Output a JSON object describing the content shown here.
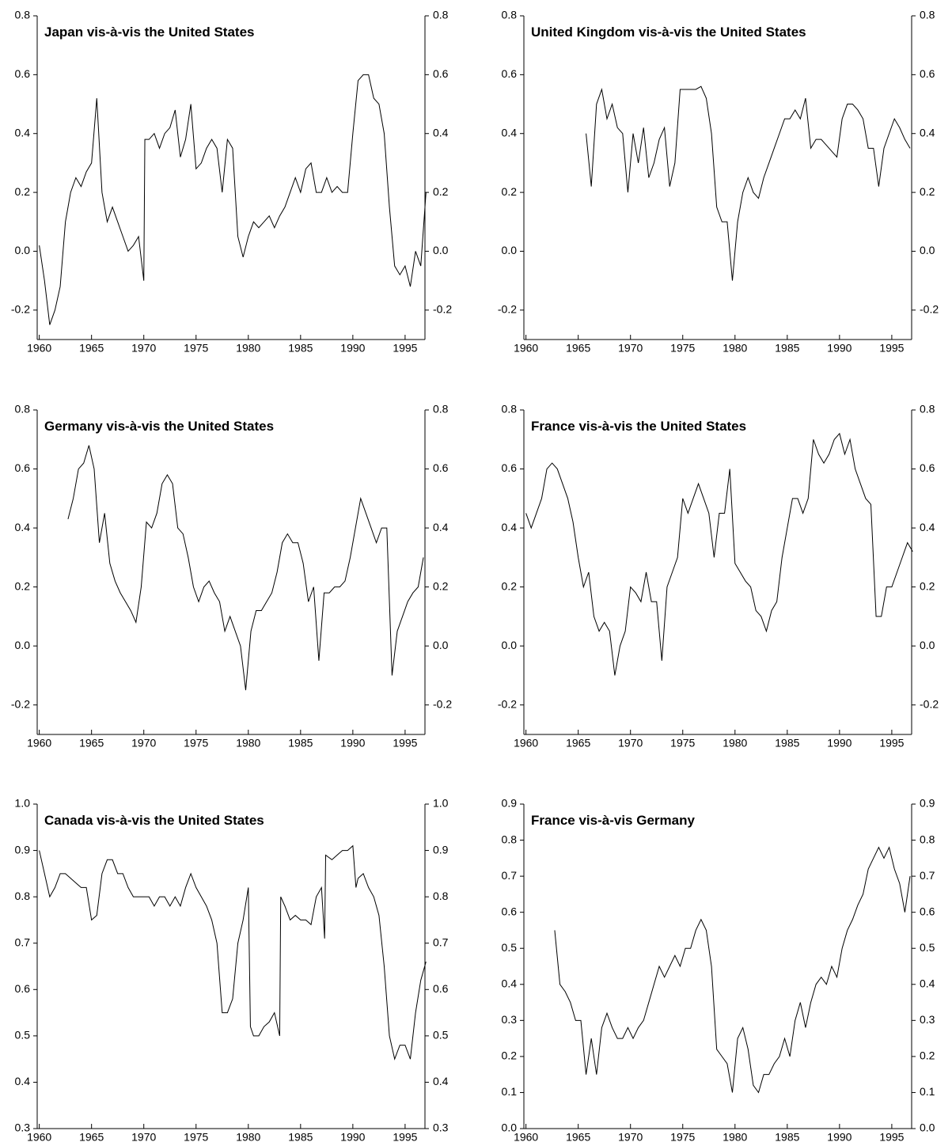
{
  "chart_data": [
    {
      "type": "line",
      "title": "Japan vis-à-vis the United States",
      "color": "#000000",
      "x": [
        1960,
        1960.5,
        1961,
        1961.5,
        1962,
        1962.5,
        1963,
        1963.5,
        1964,
        1964.5,
        1965,
        1965.5,
        1966,
        1966.5,
        1967,
        1967.5,
        1968,
        1968.5,
        1969,
        1969.5,
        1970,
        1970.1,
        1970.5,
        1971,
        1971.5,
        1972,
        1972.5,
        1973,
        1973.5,
        1974,
        1974.5,
        1975,
        1975.5,
        1976,
        1976.5,
        1977,
        1977.5,
        1978,
        1978.5,
        1979,
        1979.5,
        1980,
        1980.5,
        1981,
        1981.5,
        1982,
        1982.5,
        1983,
        1983.5,
        1984,
        1984.5,
        1985,
        1985.5,
        1986,
        1986.5,
        1987,
        1987.5,
        1988,
        1988.5,
        1989,
        1989.5,
        1990,
        1990.5,
        1991,
        1991.5,
        1992,
        1992.5,
        1993,
        1993.5,
        1994,
        1994.5,
        1995,
        1995.5,
        1996,
        1996.5,
        1997
      ],
      "values": [
        0.02,
        -0.1,
        -0.25,
        -0.2,
        -0.12,
        0.1,
        0.2,
        0.25,
        0.22,
        0.27,
        0.3,
        0.52,
        0.2,
        0.1,
        0.15,
        0.1,
        0.05,
        0.0,
        0.02,
        0.05,
        -0.1,
        0.38,
        0.38,
        0.4,
        0.35,
        0.4,
        0.42,
        0.48,
        0.32,
        0.38,
        0.5,
        0.28,
        0.3,
        0.35,
        0.38,
        0.35,
        0.2,
        0.38,
        0.35,
        0.05,
        -0.02,
        0.05,
        0.1,
        0.08,
        0.1,
        0.12,
        0.08,
        0.12,
        0.15,
        0.2,
        0.25,
        0.2,
        0.28,
        0.3,
        0.2,
        0.2,
        0.25,
        0.2,
        0.22,
        0.2,
        0.2,
        0.4,
        0.58,
        0.6,
        0.6,
        0.52,
        0.5,
        0.4,
        0.15,
        -0.05,
        -0.08,
        -0.05,
        -0.12,
        0.0,
        -0.05,
        0.2
      ],
      "xlim": [
        1959.8,
        1996.9
      ],
      "xticks": [
        1960,
        1965,
        1970,
        1975,
        1980,
        1985,
        1990,
        1995
      ],
      "ylim": [
        -0.3,
        0.8
      ],
      "yticks": [
        -0.2,
        {
          "value": 0,
          "label": "0.0"
        },
        0.2,
        0.4,
        0.6,
        0.8
      ]
    },
    {
      "type": "line",
      "title": "United Kingdom vis-à-vis the United States",
      "color": "#000000",
      "x": [
        1965.75,
        1966.25,
        1966.75,
        1967.25,
        1967.75,
        1968.25,
        1968.75,
        1969.25,
        1969.75,
        1970.25,
        1970.75,
        1971.25,
        1971.75,
        1972.25,
        1972.75,
        1973.25,
        1973.75,
        1974.25,
        1974.75,
        1975.25,
        1975.75,
        1976.25,
        1976.75,
        1977.25,
        1977.75,
        1978.25,
        1978.75,
        1979.25,
        1979.75,
        1980.25,
        1980.75,
        1981.25,
        1981.75,
        1982.25,
        1982.75,
        1983.25,
        1983.75,
        1984.25,
        1984.75,
        1985.25,
        1985.75,
        1986.25,
        1986.75,
        1987.25,
        1987.75,
        1988.25,
        1988.75,
        1989.25,
        1989.75,
        1990.25,
        1990.75,
        1991.25,
        1991.75,
        1992.25,
        1992.75,
        1993.25,
        1993.75,
        1994.25,
        1994.75,
        1995.25,
        1995.75,
        1996.25,
        1996.75
      ],
      "values": [
        0.4,
        0.22,
        0.5,
        0.55,
        0.45,
        0.5,
        0.42,
        0.4,
        0.2,
        0.4,
        0.3,
        0.42,
        0.25,
        0.3,
        0.38,
        0.42,
        0.22,
        0.3,
        0.55,
        0.55,
        0.55,
        0.55,
        0.56,
        0.52,
        0.4,
        0.15,
        0.1,
        0.1,
        -0.1,
        0.1,
        0.2,
        0.25,
        0.2,
        0.18,
        0.25,
        0.3,
        0.35,
        0.4,
        0.45,
        0.45,
        0.48,
        0.45,
        0.52,
        0.35,
        0.38,
        0.38,
        0.36,
        0.34,
        0.32,
        0.45,
        0.5,
        0.5,
        0.48,
        0.45,
        0.35,
        0.35,
        0.22,
        0.35,
        0.4,
        0.45,
        0.42,
        0.38,
        0.35
      ],
      "xlim": [
        1959.8,
        1996.9
      ],
      "xticks": [
        1960,
        1965,
        1970,
        1975,
        1980,
        1985,
        1990,
        1995
      ],
      "ylim": [
        -0.3,
        0.8
      ],
      "yticks": [
        -0.2,
        {
          "value": 0,
          "label": "0.0"
        },
        0.2,
        0.4,
        0.6,
        0.8
      ]
    },
    {
      "type": "line",
      "title": "Germany vis-à-vis the United States",
      "color": "#000000",
      "x": [
        1962.75,
        1963.25,
        1963.75,
        1964.25,
        1964.75,
        1965.25,
        1965.75,
        1966.25,
        1966.75,
        1967.25,
        1967.75,
        1968.25,
        1968.75,
        1969.25,
        1969.75,
        1970.25,
        1970.75,
        1971.25,
        1971.75,
        1972.25,
        1972.75,
        1973.25,
        1973.75,
        1974.25,
        1974.75,
        1975.25,
        1975.75,
        1976.25,
        1976.75,
        1977.25,
        1977.75,
        1978.25,
        1978.75,
        1979.25,
        1979.75,
        1980.25,
        1980.75,
        1981.25,
        1981.75,
        1982.25,
        1982.75,
        1983.25,
        1983.75,
        1984.25,
        1984.75,
        1985.25,
        1985.75,
        1986.25,
        1986.75,
        1987.25,
        1987.75,
        1988.25,
        1988.75,
        1989.25,
        1989.75,
        1990.25,
        1990.75,
        1991.25,
        1991.75,
        1992.25,
        1992.75,
        1993.25,
        1993.75,
        1994.25,
        1994.75,
        1995.25,
        1995.75,
        1996.25,
        1996.75
      ],
      "values": [
        0.43,
        0.5,
        0.6,
        0.62,
        0.68,
        0.6,
        0.35,
        0.45,
        0.28,
        0.22,
        0.18,
        0.15,
        0.12,
        0.08,
        0.2,
        0.42,
        0.4,
        0.45,
        0.55,
        0.58,
        0.55,
        0.4,
        0.38,
        0.3,
        0.2,
        0.15,
        0.2,
        0.22,
        0.18,
        0.15,
        0.05,
        0.1,
        0.05,
        0.0,
        -0.15,
        0.05,
        0.12,
        0.12,
        0.15,
        0.18,
        0.25,
        0.35,
        0.38,
        0.35,
        0.35,
        0.28,
        0.15,
        0.2,
        -0.05,
        0.18,
        0.18,
        0.2,
        0.2,
        0.22,
        0.3,
        0.4,
        0.5,
        0.45,
        0.4,
        0.35,
        0.4,
        0.4,
        -0.1,
        0.05,
        0.1,
        0.15,
        0.18,
        0.2,
        0.3
      ],
      "xlim": [
        1959.8,
        1996.9
      ],
      "xticks": [
        1960,
        1965,
        1970,
        1975,
        1980,
        1985,
        1990,
        1995
      ],
      "ylim": [
        -0.3,
        0.8
      ],
      "yticks": [
        -0.2,
        {
          "value": 0,
          "label": "0.0"
        },
        0.2,
        0.4,
        0.6,
        0.8
      ]
    },
    {
      "type": "line",
      "title": "France vis-à-vis the United States",
      "color": "#000000",
      "x": [
        1960,
        1960.5,
        1961,
        1961.5,
        1962,
        1962.5,
        1963,
        1963.5,
        1964,
        1964.5,
        1965,
        1965.5,
        1966,
        1966.5,
        1967,
        1967.5,
        1968,
        1968.5,
        1969,
        1969.5,
        1970,
        1970.5,
        1971,
        1971.5,
        1972,
        1972.5,
        1973,
        1973.5,
        1974,
        1974.5,
        1975,
        1975.5,
        1976,
        1976.5,
        1977,
        1977.5,
        1978,
        1978.5,
        1979,
        1979.5,
        1980,
        1980.5,
        1981,
        1981.5,
        1982,
        1982.5,
        1983,
        1983.5,
        1984,
        1984.5,
        1985,
        1985.5,
        1986,
        1986.5,
        1987,
        1987.5,
        1988,
        1988.5,
        1989,
        1989.5,
        1990,
        1990.5,
        1991,
        1991.5,
        1992,
        1992.5,
        1993,
        1993.5,
        1994,
        1994.5,
        1995,
        1995.5,
        1996,
        1996.5,
        1997
      ],
      "values": [
        0.45,
        0.4,
        0.45,
        0.5,
        0.6,
        0.62,
        0.6,
        0.55,
        0.5,
        0.42,
        0.3,
        0.2,
        0.25,
        0.1,
        0.05,
        0.08,
        0.05,
        -0.1,
        0.0,
        0.05,
        0.2,
        0.18,
        0.15,
        0.25,
        0.15,
        0.15,
        -0.05,
        0.2,
        0.25,
        0.3,
        0.5,
        0.45,
        0.5,
        0.55,
        0.5,
        0.45,
        0.3,
        0.45,
        0.45,
        0.6,
        0.28,
        0.25,
        0.22,
        0.2,
        0.12,
        0.1,
        0.05,
        0.12,
        0.15,
        0.3,
        0.4,
        0.5,
        0.5,
        0.45,
        0.5,
        0.7,
        0.65,
        0.62,
        0.65,
        0.7,
        0.72,
        0.65,
        0.7,
        0.6,
        0.55,
        0.5,
        0.48,
        0.1,
        0.1,
        0.2,
        0.2,
        0.25,
        0.3,
        0.35,
        0.32
      ],
      "xlim": [
        1959.8,
        1996.9
      ],
      "xticks": [
        1960,
        1965,
        1970,
        1975,
        1980,
        1985,
        1990,
        1995
      ],
      "ylim": [
        -0.3,
        0.8
      ],
      "yticks": [
        -0.2,
        {
          "value": 0,
          "label": "0.0"
        },
        0.2,
        0.4,
        0.6,
        0.8
      ]
    },
    {
      "type": "line",
      "title": "Canada vis-à-vis the United States",
      "color": "#000000",
      "x": [
        1960,
        1960.5,
        1961,
        1961.5,
        1962,
        1962.5,
        1963,
        1963.5,
        1964,
        1964.5,
        1965,
        1965.5,
        1966,
        1966.5,
        1967,
        1967.5,
        1968,
        1968.5,
        1969,
        1969.5,
        1970,
        1970.5,
        1971,
        1971.5,
        1972,
        1972.5,
        1973,
        1973.5,
        1974,
        1974.5,
        1975,
        1975.5,
        1976,
        1976.5,
        1977,
        1977.5,
        1978,
        1978.5,
        1979,
        1979.5,
        1980,
        1980.2,
        1980.5,
        1981,
        1981.5,
        1982,
        1982.5,
        1983,
        1983.1,
        1983.5,
        1984,
        1984.5,
        1985,
        1985.5,
        1986,
        1986.5,
        1987,
        1987.3,
        1987.4,
        1988,
        1988.5,
        1989,
        1989.5,
        1990,
        1990.3,
        1990.5,
        1991,
        1991.5,
        1992,
        1992.5,
        1993,
        1993.5,
        1994,
        1994.5,
        1995,
        1995.5,
        1996,
        1996.5,
        1997
      ],
      "values": [
        0.9,
        0.85,
        0.8,
        0.82,
        0.85,
        0.85,
        0.84,
        0.83,
        0.82,
        0.82,
        0.75,
        0.76,
        0.85,
        0.88,
        0.88,
        0.85,
        0.85,
        0.82,
        0.8,
        0.8,
        0.8,
        0.8,
        0.78,
        0.8,
        0.8,
        0.78,
        0.8,
        0.78,
        0.82,
        0.85,
        0.82,
        0.8,
        0.78,
        0.75,
        0.7,
        0.55,
        0.55,
        0.58,
        0.7,
        0.75,
        0.82,
        0.52,
        0.5,
        0.5,
        0.52,
        0.53,
        0.55,
        0.5,
        0.8,
        0.78,
        0.75,
        0.76,
        0.75,
        0.75,
        0.74,
        0.8,
        0.82,
        0.71,
        0.89,
        0.88,
        0.89,
        0.9,
        0.9,
        0.91,
        0.82,
        0.84,
        0.85,
        0.82,
        0.8,
        0.76,
        0.65,
        0.5,
        0.45,
        0.48,
        0.48,
        0.45,
        0.55,
        0.62,
        0.66
      ],
      "xlim": [
        1959.8,
        1996.9
      ],
      "xticks": [
        1960,
        1965,
        1970,
        1975,
        1980,
        1985,
        1990,
        1995
      ],
      "ylim": [
        0.3,
        1.0
      ],
      "yticks": [
        0.3,
        0.4,
        0.5,
        0.6,
        0.7,
        0.8,
        0.9,
        {
          "value": 1,
          "label": "1.0"
        }
      ]
    },
    {
      "type": "line",
      "title": "France vis-à-vis Germany",
      "color": "#000000",
      "x": [
        1962.75,
        1963.25,
        1963.75,
        1964.25,
        1964.75,
        1965.25,
        1965.75,
        1966.25,
        1966.75,
        1967.25,
        1967.75,
        1968.25,
        1968.75,
        1969.25,
        1969.75,
        1970.25,
        1970.75,
        1971.25,
        1971.75,
        1972.25,
        1972.75,
        1973.25,
        1973.75,
        1974.25,
        1974.75,
        1975.25,
        1975.75,
        1976.25,
        1976.75,
        1977.25,
        1977.75,
        1978.25,
        1978.75,
        1979.25,
        1979.75,
        1980.25,
        1980.75,
        1981.25,
        1981.75,
        1982.25,
        1982.75,
        1983.25,
        1983.75,
        1984.25,
        1984.75,
        1985.25,
        1985.75,
        1986.25,
        1986.75,
        1987.25,
        1987.75,
        1988.25,
        1988.75,
        1989.25,
        1989.75,
        1990.25,
        1990.75,
        1991.25,
        1991.75,
        1992.25,
        1992.75,
        1993.25,
        1993.75,
        1994.25,
        1994.75,
        1995.25,
        1995.75,
        1996.25,
        1996.75
      ],
      "values": [
        0.55,
        0.4,
        0.38,
        0.35,
        0.3,
        0.3,
        0.15,
        0.25,
        0.15,
        0.28,
        0.32,
        0.28,
        0.25,
        0.25,
        0.28,
        0.25,
        0.28,
        0.3,
        0.35,
        0.4,
        0.45,
        0.42,
        0.45,
        0.48,
        0.45,
        0.5,
        0.5,
        0.55,
        0.58,
        0.55,
        0.45,
        0.22,
        0.2,
        0.18,
        0.1,
        0.25,
        0.28,
        0.22,
        0.12,
        0.1,
        0.15,
        0.15,
        0.18,
        0.2,
        0.25,
        0.2,
        0.3,
        0.35,
        0.28,
        0.35,
        0.4,
        0.42,
        0.4,
        0.45,
        0.42,
        0.5,
        0.55,
        0.58,
        0.62,
        0.65,
        0.72,
        0.75,
        0.78,
        0.75,
        0.78,
        0.72,
        0.68,
        0.6,
        0.7
      ],
      "xlim": [
        1959.8,
        1996.9
      ],
      "xticks": [
        1960,
        1965,
        1970,
        1975,
        1980,
        1985,
        1990,
        1995
      ],
      "ylim": [
        0,
        0.9
      ],
      "yticks": [
        {
          "value": 0,
          "label": "0.0"
        },
        0.1,
        0.2,
        0.3,
        0.4,
        0.5,
        0.6,
        0.7,
        0.8,
        0.9
      ]
    }
  ]
}
